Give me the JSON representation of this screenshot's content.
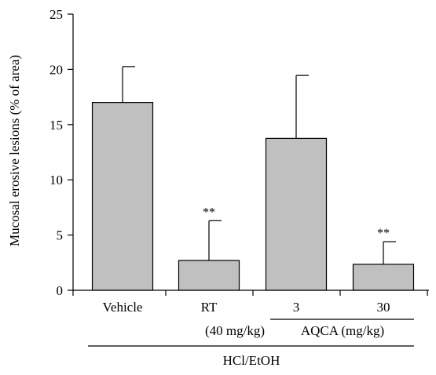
{
  "chart_data": {
    "type": "bar",
    "categories": [
      "Vehicle",
      "RT",
      "3",
      "30"
    ],
    "values": [
      17.0,
      2.7,
      13.75,
      2.35
    ],
    "errors": [
      3.25,
      3.6,
      5.7,
      2.05
    ],
    "significance": [
      "",
      "**",
      "",
      "**"
    ],
    "ylabel": "Mucosal erosive lesions (% of area)",
    "ylim": [
      0,
      25
    ],
    "yticks": [
      0,
      5,
      10,
      15,
      20,
      25
    ],
    "group_labels": {
      "rt_dose": "(40 mg/kg)",
      "aqca": "AQCA (mg/kg)",
      "hcl": "HCl/EtOH"
    },
    "bar_color": "#c0c0c0",
    "grid": false
  }
}
